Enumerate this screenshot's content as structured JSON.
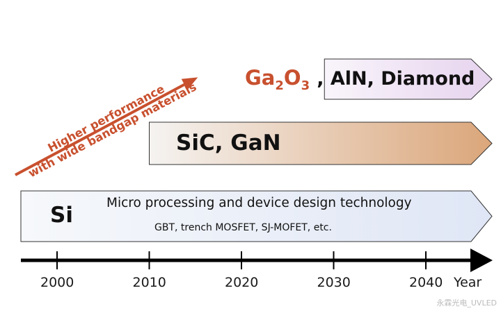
{
  "colors": {
    "accent": "#c8502e",
    "si_band_left": "#f6f8fb",
    "si_band_right": "#dfe6f5",
    "sic_band_left": "#f5f3f1",
    "sic_band_right": "#dba67a",
    "ga_band_left": "#f9f5fb",
    "ga_band_right": "#e6d3ee",
    "axis": "#000000"
  },
  "bands": [
    {
      "id": "si",
      "start_year": 1995,
      "end_year": 2040,
      "label": "Si",
      "line1": "Micro processing and device design technology",
      "line2": "GBT, trench MOSFET, SJ-MOFET, etc."
    },
    {
      "id": "sic-gan",
      "start_year": 2010,
      "end_year": 2040,
      "label": "SiC, GaN"
    },
    {
      "id": "ga2o3-aln-diamond",
      "start_year": 2029,
      "end_year": 2040,
      "label_prefix_main": "Ga",
      "label_prefix_sub1": "2",
      "label_prefix_mid": "O",
      "label_prefix_sub2": "3",
      "label_rest": ", AlN, Diamond"
    }
  ],
  "arrow_text": {
    "line1": "Higher performance",
    "line2": "with wide bandgap materials"
  },
  "timeline": {
    "ticks": [
      2000,
      2010,
      2020,
      2030,
      2040
    ],
    "tick_labels": [
      "2000",
      "2010",
      "2020",
      "2030",
      "2040"
    ],
    "unit_label": "Year"
  },
  "watermark": "永霖光电_UVLED"
}
